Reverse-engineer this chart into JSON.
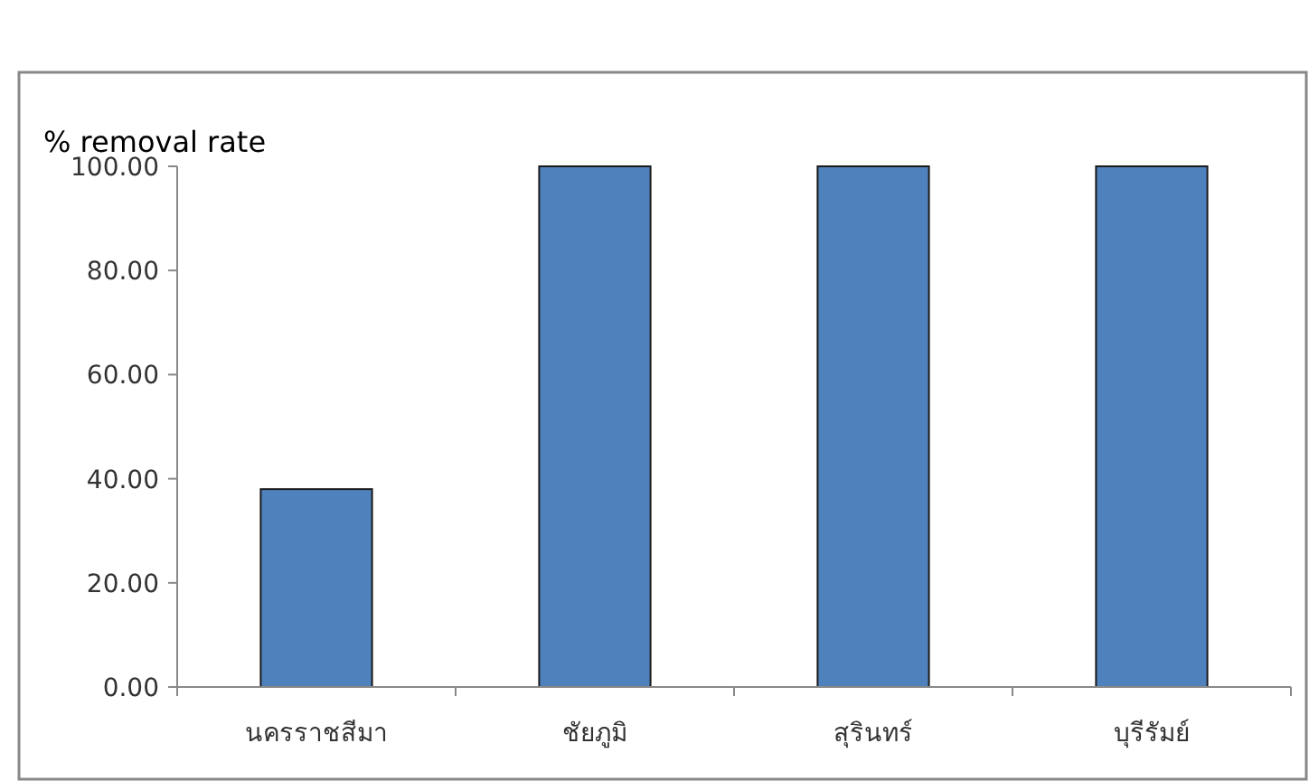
{
  "chart_data": {
    "type": "bar",
    "title": "% removal rate",
    "categories": [
      "นครราชสีมา",
      "ชัยภูมิ",
      "สุรินทร์",
      "บุรีรัมย์"
    ],
    "values": [
      38,
      100,
      100,
      100
    ],
    "color": "#4f81bd",
    "ylim": [
      0,
      100
    ],
    "yticks": [
      {
        "value": 0,
        "label": "0.00"
      },
      {
        "value": 20,
        "label": "20.00"
      },
      {
        "value": 40,
        "label": "40.00"
      },
      {
        "value": 60,
        "label": "60.00"
      },
      {
        "value": 80,
        "label": "80.00"
      },
      {
        "value": 100,
        "label": "100.00"
      }
    ],
    "grid": false
  }
}
